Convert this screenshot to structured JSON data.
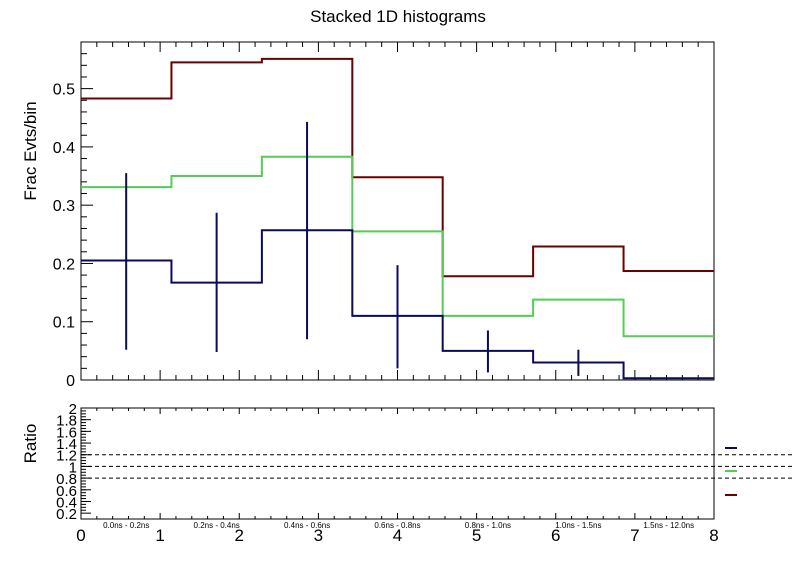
{
  "chart_data": {
    "type": "step-histogram",
    "title": "Stacked 1D histograms",
    "top_panel": {
      "ylabel": "Frac Evts/bin",
      "ylim": [
        0,
        0.58
      ],
      "y_ticks": [
        0,
        0.1,
        0.2,
        0.3,
        0.4,
        0.5
      ],
      "y_tick_labels": [
        "0",
        "0.1",
        "0.2",
        "0.3",
        "0.4",
        "0.5"
      ],
      "bin_edges": [
        0,
        1.143,
        2.286,
        3.429,
        4.571,
        5.714,
        6.857,
        8
      ],
      "series": [
        {
          "name": "series-dark-red",
          "color": "#6b0000",
          "values": [
            0.483,
            0.545,
            0.551,
            0.348,
            0.178,
            0.229,
            0.187
          ]
        },
        {
          "name": "series-green",
          "color": "#55cc55",
          "values": [
            0.331,
            0.35,
            0.383,
            0.255,
            0.11,
            0.138,
            0.075
          ]
        },
        {
          "name": "series-navy",
          "color": "#0a0a5e",
          "values": [
            0.205,
            0.167,
            0.257,
            0.11,
            0.05,
            0.03,
            0.003
          ],
          "error_bars": {
            "x": [
              0.571,
              1.714,
              2.857,
              4.0,
              5.143,
              6.286
            ],
            "low": [
              0.052,
              0.048,
              0.07,
              0.02,
              0.013,
              0.007
            ],
            "high": [
              0.355,
              0.287,
              0.443,
              0.197,
              0.085,
              0.052
            ]
          }
        }
      ]
    },
    "bottom_panel": {
      "ylabel": "Ratio",
      "ylim": [
        0.1,
        2.0
      ],
      "y_tick_labels": [
        "2",
        "1.8",
        "1.6",
        "1.4",
        "1.2",
        "1",
        "0.8",
        "0.6",
        "0.4",
        "0.2"
      ],
      "y_tick_values": [
        2.0,
        1.8,
        1.6,
        1.4,
        1.2,
        1.0,
        0.8,
        0.6,
        0.4,
        0.2
      ],
      "reference_lines": [
        1.2,
        1.0,
        0.8
      ],
      "bin_labels": [
        "0.0ns - 0.2ns",
        "0.2ns - 0.4ns",
        "0.4ns - 0.6ns",
        "0.6ns - 0.8ns",
        "0.8ns - 1.0ns",
        "1.0ns - 1.5ns",
        "1.5ns - 12.0ns"
      ],
      "legend_labels": [
        "",
        "",
        ""
      ]
    },
    "x_axis": {
      "xlim": [
        0,
        8
      ],
      "tick_labels": [
        "0",
        "1",
        "2",
        "3",
        "4",
        "5",
        "6",
        "7",
        "8"
      ]
    }
  }
}
